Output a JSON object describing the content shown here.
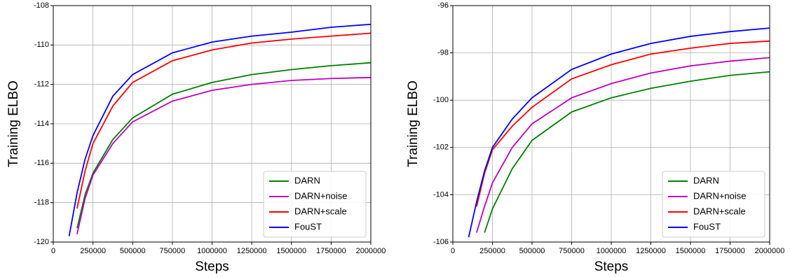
{
  "chart_data": [
    {
      "type": "line",
      "xlabel": "Steps",
      "ylabel": "Training ELBO",
      "x": [
        100000,
        150000,
        200000,
        250000,
        375000,
        500000,
        750000,
        1000000,
        1250000,
        1500000,
        1750000,
        2000000
      ],
      "series": [
        {
          "name": "DARN",
          "color": "#008000",
          "values": [
            null,
            -119.3,
            -117.6,
            -116.5,
            -114.8,
            -113.7,
            -112.5,
            -111.9,
            -111.5,
            -111.25,
            -111.05,
            -110.9
          ]
        },
        {
          "name": "DARN+noise",
          "color": "#c000c0",
          "values": [
            null,
            -119.6,
            -117.8,
            -116.6,
            -115.0,
            -113.9,
            -112.85,
            -112.3,
            -112.0,
            -111.8,
            -111.7,
            -111.65
          ]
        },
        {
          "name": "DARN+scale",
          "color": "#ff0000",
          "values": [
            null,
            -118.3,
            -116.4,
            -115.0,
            -113.1,
            -111.9,
            -110.8,
            -110.25,
            -109.9,
            -109.7,
            -109.55,
            -109.4
          ]
        },
        {
          "name": "FouST",
          "color": "#0000ff",
          "values": [
            -119.7,
            -117.5,
            -115.8,
            -114.6,
            -112.6,
            -111.5,
            -110.4,
            -109.85,
            -109.55,
            -109.35,
            -109.1,
            -108.95
          ]
        }
      ],
      "xlim": [
        0,
        2000000
      ],
      "xticks": [
        0,
        250000,
        500000,
        750000,
        1000000,
        1250000,
        1500000,
        1750000,
        2000000
      ],
      "ylim": [
        -120,
        -108
      ],
      "yticks": [
        -120,
        -118,
        -116,
        -114,
        -112,
        -110,
        -108
      ],
      "grid": true,
      "legend": "lower right"
    },
    {
      "type": "line",
      "xlabel": "Steps",
      "ylabel": "Training ELBO",
      "x": [
        100000,
        150000,
        200000,
        250000,
        375000,
        500000,
        750000,
        1000000,
        1250000,
        1500000,
        1750000,
        2000000
      ],
      "series": [
        {
          "name": "DARN",
          "color": "#008000",
          "values": [
            null,
            null,
            -105.6,
            -104.6,
            -102.9,
            -101.7,
            -100.5,
            -99.9,
            -99.5,
            -99.2,
            -98.95,
            -98.8
          ]
        },
        {
          "name": "DARN+noise",
          "color": "#c000c0",
          "values": [
            null,
            -105.6,
            -104.5,
            -103.5,
            -102.0,
            -101.0,
            -99.9,
            -99.3,
            -98.85,
            -98.55,
            -98.35,
            -98.2
          ]
        },
        {
          "name": "DARN+scale",
          "color": "#ff0000",
          "values": [
            null,
            -104.5,
            -103.1,
            -102.1,
            -101.1,
            -100.3,
            -99.1,
            -98.5,
            -98.05,
            -97.8,
            -97.6,
            -97.5
          ]
        },
        {
          "name": "FouST",
          "color": "#0000ff",
          "values": [
            -105.8,
            -104.3,
            -103.0,
            -102.0,
            -100.8,
            -99.9,
            -98.7,
            -98.05,
            -97.6,
            -97.3,
            -97.1,
            -96.95
          ]
        }
      ],
      "xlim": [
        0,
        2000000
      ],
      "xticks": [
        0,
        250000,
        500000,
        750000,
        1000000,
        1250000,
        1500000,
        1750000,
        2000000
      ],
      "ylim": [
        -106,
        -96
      ],
      "yticks": [
        -106,
        -104,
        -102,
        -100,
        -98,
        -96
      ],
      "grid": true,
      "legend": "lower right"
    }
  ]
}
